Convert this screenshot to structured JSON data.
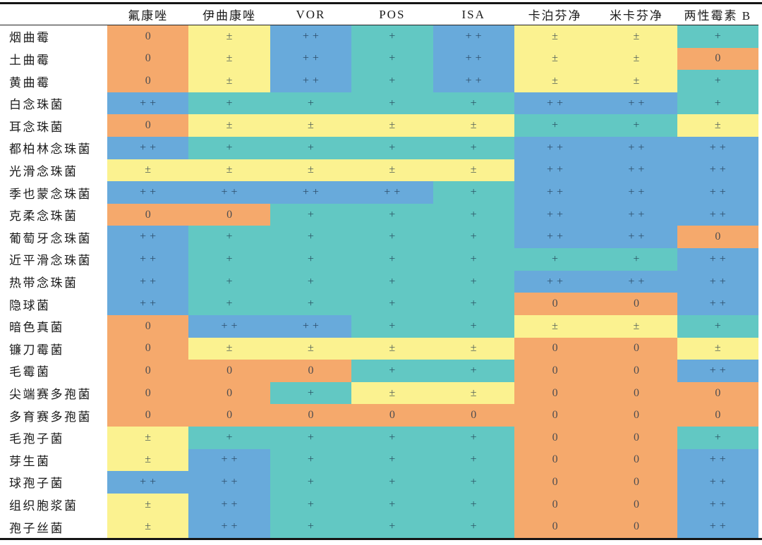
{
  "chart_data": {
    "type": "heatmap",
    "title": "",
    "columns": [
      "氟康唑",
      "伊曲康唑",
      "VOR",
      "POS",
      "ISA",
      "卡泊芬净",
      "米卡芬净",
      "两性霉素 B"
    ],
    "rows": [
      "烟曲霉",
      "土曲霉",
      "黄曲霉",
      "白念珠菌",
      "耳念珠菌",
      "都柏林念珠菌",
      "光滑念珠菌",
      "季也蒙念珠菌",
      "克柔念珠菌",
      "葡萄牙念珠菌",
      "近平滑念珠菌",
      "热带念珠菌",
      "隐球菌",
      "暗色真菌",
      "镰刀霉菌",
      "毛霉菌",
      "尖端赛多孢菌",
      "多育赛多孢菌",
      "毛孢子菌",
      "芽生菌",
      "球孢子菌",
      "组织胞浆菌",
      "孢子丝菌"
    ],
    "values": [
      [
        "0",
        "±",
        "++",
        "+",
        "++",
        "±",
        "±",
        "+"
      ],
      [
        "0",
        "±",
        "++",
        "+",
        "++",
        "±",
        "±",
        "0"
      ],
      [
        "0",
        "±",
        "++",
        "+",
        "++",
        "±",
        "±",
        "+"
      ],
      [
        "++",
        "+",
        "+",
        "+",
        "+",
        "++",
        "++",
        "+"
      ],
      [
        "0",
        "±",
        "±",
        "±",
        "±",
        "+",
        "+",
        "±"
      ],
      [
        "++",
        "+",
        "+",
        "+",
        "+",
        "++",
        "++",
        "++"
      ],
      [
        "±",
        "±",
        "±",
        "±",
        "±",
        "++",
        "++",
        "++"
      ],
      [
        "++",
        "++",
        "++",
        "++",
        "+",
        "++",
        "++",
        "++"
      ],
      [
        "0",
        "0",
        "+",
        "+",
        "+",
        "++",
        "++",
        "++"
      ],
      [
        "++",
        "+",
        "+",
        "+",
        "+",
        "++",
        "++",
        "0"
      ],
      [
        "++",
        "+",
        "+",
        "+",
        "+",
        "+",
        "+",
        "++"
      ],
      [
        "++",
        "+",
        "+",
        "+",
        "+",
        "++",
        "++",
        "++"
      ],
      [
        "++",
        "+",
        "+",
        "+",
        "+",
        "0",
        "0",
        "++"
      ],
      [
        "0",
        "++",
        "++",
        "+",
        "+",
        "±",
        "±",
        "+"
      ],
      [
        "0",
        "±",
        "±",
        "±",
        "±",
        "0",
        "0",
        "±"
      ],
      [
        "0",
        "0",
        "0",
        "+",
        "+",
        "0",
        "0",
        "++"
      ],
      [
        "0",
        "0",
        "+",
        "±",
        "±",
        "0",
        "0",
        "0"
      ],
      [
        "0",
        "0",
        "0",
        "0",
        "0",
        "0",
        "0",
        "0"
      ],
      [
        "±",
        "+",
        "+",
        "+",
        "+",
        "0",
        "0",
        "+"
      ],
      [
        "±",
        "++",
        "+",
        "+",
        "+",
        "0",
        "0",
        "++"
      ],
      [
        "++",
        "++",
        "+",
        "+",
        "+",
        "0",
        "0",
        "++"
      ],
      [
        "±",
        "++",
        "+",
        "+",
        "+",
        "0",
        "0",
        "++"
      ],
      [
        "±",
        "++",
        "+",
        "+",
        "+",
        "0",
        "0",
        "++"
      ]
    ],
    "value_color_map": {
      "0": "#f5a96c",
      "±": "#fbf290",
      "+": "#62c8c3",
      "++": "#68aadb"
    },
    "symbol_color": "#1c3248",
    "border_color": "#151515",
    "layout": {
      "label_column": "left",
      "gridlines": false,
      "style": "three-line-table"
    }
  }
}
